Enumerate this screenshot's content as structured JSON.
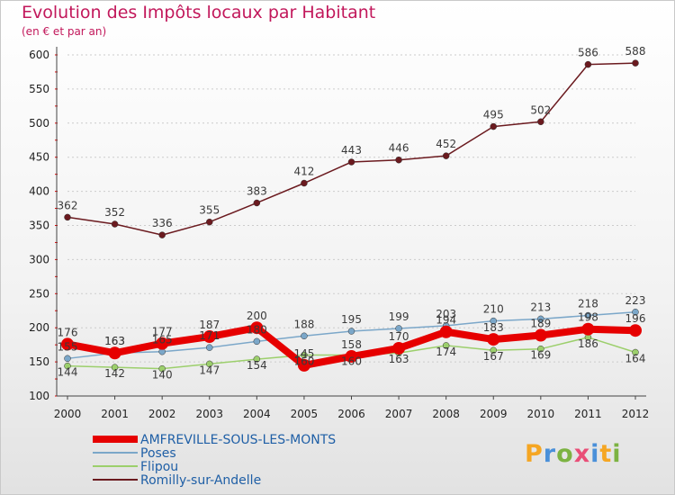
{
  "title": "Evolution des Impôts locaux par Habitant",
  "subtitle": "(en € et par an)",
  "colors": {
    "accent": "#c2185b",
    "grid": "#cccccc"
  },
  "logo": {
    "text": "Proxiti",
    "colors": [
      "#f5a623",
      "#4a90d9",
      "#7cb342",
      "#e94e77",
      "#4a90d9",
      "#f5a623",
      "#7cb342"
    ]
  },
  "chart_data": {
    "type": "line",
    "title": "Evolution des Impôts locaux par Habitant",
    "subtitle": "(en € et par an)",
    "xlabel": "",
    "ylabel": "",
    "ylim": [
      100,
      600
    ],
    "yticks": [
      100,
      150,
      200,
      250,
      300,
      350,
      400,
      450,
      500,
      550,
      600
    ],
    "grid": true,
    "legend_position": "bottom-left",
    "categories": [
      "2000",
      "2001",
      "2002",
      "2003",
      "2004",
      "2005",
      "2006",
      "2007",
      "2008",
      "2009",
      "2010",
      "2011",
      "2012"
    ],
    "series": [
      {
        "name": "Romilly-sur-Andelle",
        "color": "#6b1a1f",
        "line_width": 1.5,
        "values": [
          362,
          352,
          336,
          355,
          383,
          412,
          443,
          446,
          452,
          495,
          502,
          586,
          588
        ]
      },
      {
        "name": "Poses",
        "color": "#7ba7c9",
        "line_width": 1.5,
        "values": [
          155,
          163,
          165,
          171,
          180,
          188,
          195,
          199,
          203,
          210,
          213,
          218,
          223
        ]
      },
      {
        "name": "Flipou",
        "color": "#9ccf6c",
        "line_width": 1.5,
        "values": [
          144,
          142,
          140,
          147,
          154,
          160,
          160,
          163,
          174,
          167,
          169,
          186,
          164
        ]
      },
      {
        "name": "AMFREVILLE-SOUS-LES-MONTS",
        "color": "#e60000",
        "line_width": 8,
        "values": [
          176,
          163,
          177,
          187,
          200,
          145,
          158,
          170,
          194,
          183,
          189,
          198,
          196
        ]
      }
    ],
    "data_labels": [
      {
        "series": "Romilly-sur-Andelle",
        "text": [
          "362",
          "352",
          "336",
          "355",
          "383",
          "412",
          "443",
          "446",
          "452",
          "495",
          "502",
          "586",
          "588"
        ]
      },
      {
        "series": "Poses",
        "text": [
          "155",
          "163",
          "165",
          "171",
          "180",
          "188",
          "195",
          "199",
          "203",
          "210",
          "213",
          "218",
          "223"
        ]
      },
      {
        "series": "Flipou",
        "text": [
          "144",
          "142",
          "140",
          "147",
          "154",
          "160",
          "160",
          "163",
          "174",
          "167",
          "169",
          "186",
          "164"
        ]
      },
      {
        "series": "AMFREVILLE-SOUS-LES-MONTS",
        "text": [
          "176",
          "163",
          "177",
          "187",
          "200",
          "145",
          "158",
          "170",
          "194",
          "183",
          "189",
          "198",
          "196"
        ]
      }
    ],
    "legend": [
      "AMFREVILLE-SOUS-LES-MONTS",
      "Poses",
      "Flipou",
      "Romilly-sur-Andelle"
    ]
  }
}
